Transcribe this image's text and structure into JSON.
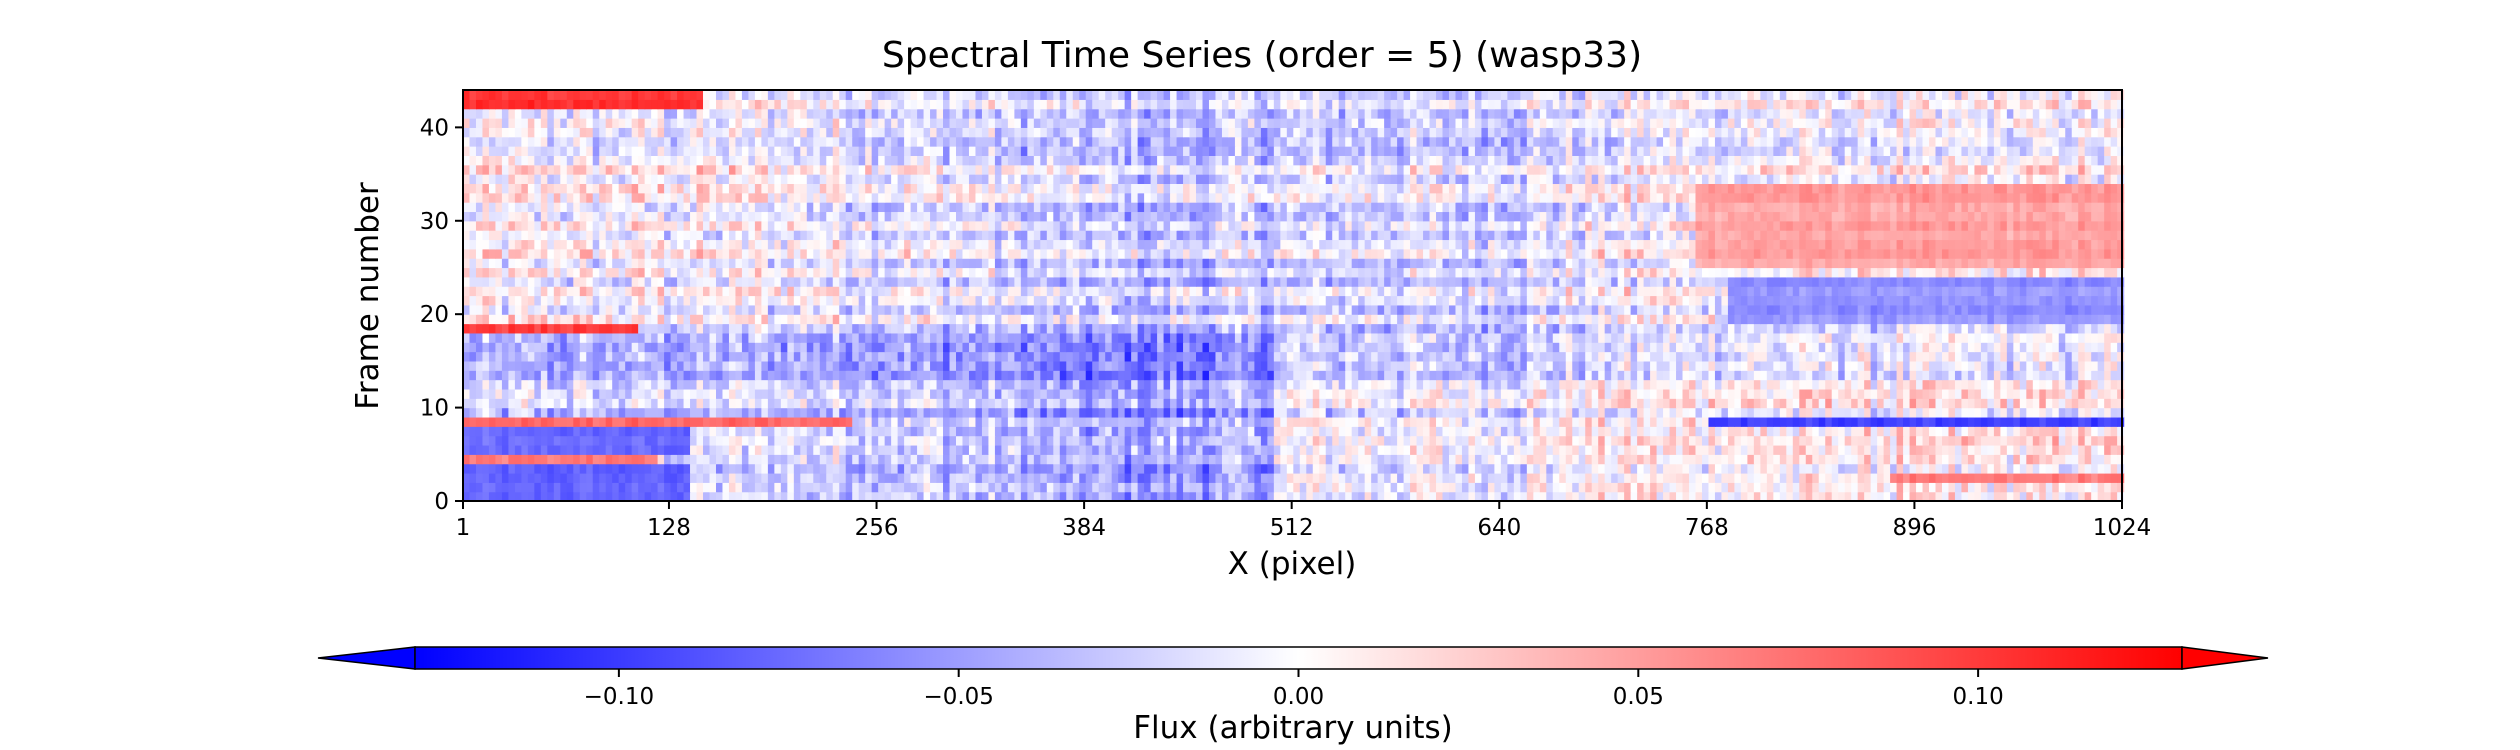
{
  "chart_data": {
    "type": "heatmap",
    "title": "Spectral Time Series (order = 5) (wasp33)",
    "xlabel": "X (pixel)",
    "ylabel": "Frame number",
    "xlim": [
      1,
      1024
    ],
    "ylim": [
      0,
      44
    ],
    "xticks": [
      1,
      128,
      256,
      384,
      512,
      640,
      768,
      896,
      1024
    ],
    "yticks": [
      0,
      10,
      20,
      30,
      40
    ],
    "n_frames": 44,
    "colormap": "bwr",
    "colors": {
      "low": "#0000ff",
      "mid": "#ffffff",
      "high": "#ff0000"
    },
    "colorbar": {
      "label": "Flux (arbitrary units)",
      "vmin": -0.13,
      "vmax": 0.13,
      "extend": "both",
      "orientation": "horizontal",
      "ticks": [
        -0.1,
        -0.05,
        0.0,
        0.05,
        0.1
      ],
      "tick_labels": [
        "−0.10",
        "−0.05",
        "0.00",
        "0.05",
        "0.10"
      ]
    },
    "feature_bands": [
      {
        "frames": [
          42,
          43
        ],
        "x_range": [
          1,
          150
        ],
        "value": 0.13
      },
      {
        "frames": [
          18
        ],
        "x_range": [
          1,
          110
        ],
        "value": 0.13
      },
      {
        "frames": [
          8
        ],
        "x_range": [
          1,
          240
        ],
        "value": 0.1
      },
      {
        "frames": [
          4
        ],
        "x_range": [
          1,
          120
        ],
        "value": 0.09
      },
      {
        "frames": [
          8
        ],
        "x_range": [
          770,
          1024
        ],
        "value": -0.13
      },
      {
        "frames": [
          19,
          20,
          21,
          22,
          23
        ],
        "x_range": [
          780,
          1024
        ],
        "value": -0.07
      },
      {
        "frames": [
          25,
          26,
          27,
          28,
          29,
          30,
          31,
          32,
          33
        ],
        "x_range": [
          760,
          1024
        ],
        "value": 0.06
      },
      {
        "frames": [
          0,
          1,
          2,
          3,
          5,
          6,
          7
        ],
        "x_range": [
          1,
          140
        ],
        "value": -0.09
      },
      {
        "frames": [
          2
        ],
        "x_range": [
          880,
          1024
        ],
        "value": 0.08
      }
    ]
  }
}
